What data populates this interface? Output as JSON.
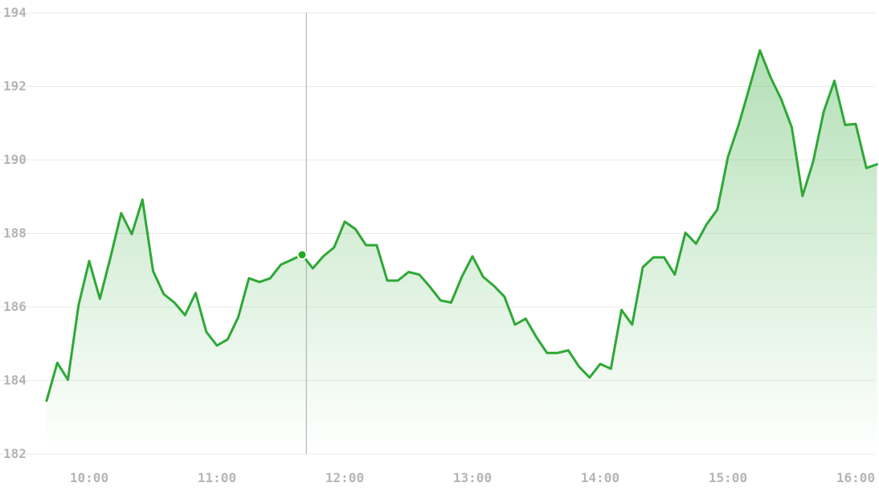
{
  "colors": {
    "line": "#2ea836",
    "fill": "#2ea836",
    "grid": "#ebebeb",
    "tick_text": "#b5b5b5",
    "crosshair": "#a9a9a9",
    "marker": "#1faa1f"
  },
  "chart_data": {
    "type": "area",
    "title": "",
    "xlabel": "",
    "ylabel": "",
    "ylim": [
      182,
      194
    ],
    "y_ticks": [
      182,
      184,
      186,
      188,
      190,
      192,
      194
    ],
    "y_tick_labels": [
      "182",
      "184",
      "186",
      "188",
      "190",
      "192",
      "194"
    ],
    "x_ticks": [
      "10:00",
      "11:00",
      "12:00",
      "13:00",
      "14:00",
      "15:00",
      "16:00"
    ],
    "xlim": [
      "09:40",
      "16:10"
    ],
    "grid": "horizontal",
    "crosshair_time": "11:42",
    "highlight": {
      "time": "11:40",
      "value": 187.42
    },
    "series": [
      {
        "x": [
          "09:40",
          "09:45",
          "09:50",
          "09:55",
          "10:00",
          "10:05",
          "10:10",
          "10:15",
          "10:20",
          "10:25",
          "10:30",
          "10:35",
          "10:40",
          "10:45",
          "10:50",
          "10:55",
          "11:00",
          "11:05",
          "11:10",
          "11:15",
          "11:20",
          "11:25",
          "11:30",
          "11:35",
          "11:40",
          "11:45",
          "11:50",
          "11:55",
          "12:00",
          "12:05",
          "12:10",
          "12:15",
          "12:20",
          "12:25",
          "12:30",
          "12:35",
          "12:40",
          "12:45",
          "12:50",
          "12:55",
          "13:00",
          "13:05",
          "13:10",
          "13:15",
          "13:20",
          "13:25",
          "13:30",
          "13:35",
          "13:40",
          "13:45",
          "13:50",
          "13:55",
          "14:00",
          "14:05",
          "14:10",
          "14:15",
          "14:20",
          "14:25",
          "14:30",
          "14:35",
          "14:40",
          "14:45",
          "14:50",
          "14:55",
          "15:00",
          "15:05",
          "15:10",
          "15:15",
          "15:20",
          "15:25",
          "15:30",
          "15:35",
          "15:40",
          "15:45",
          "15:50",
          "15:55",
          "16:00",
          "16:05",
          "16:10"
        ],
        "values": [
          183.45,
          184.48,
          184.02,
          186.05,
          187.25,
          186.22,
          187.35,
          188.55,
          187.98,
          188.92,
          186.98,
          186.35,
          186.12,
          185.78,
          186.38,
          185.32,
          184.95,
          185.12,
          185.72,
          186.78,
          186.68,
          186.78,
          187.15,
          187.28,
          187.42,
          187.05,
          187.38,
          187.62,
          188.32,
          188.12,
          187.68,
          187.68,
          186.72,
          186.72,
          186.95,
          186.88,
          186.55,
          186.18,
          186.12,
          186.82,
          187.38,
          186.82,
          186.58,
          186.28,
          185.52,
          185.68,
          185.18,
          184.75,
          184.75,
          184.82,
          184.38,
          184.08,
          184.45,
          184.32,
          185.92,
          185.52,
          187.08,
          187.35,
          187.35,
          186.88,
          188.02,
          187.72,
          188.25,
          188.65,
          190.08,
          190.95,
          191.95,
          192.98,
          192.25,
          191.65,
          190.88,
          189.02,
          189.95,
          191.32,
          192.15,
          190.95,
          190.98,
          189.78,
          189.88
        ]
      }
    ]
  }
}
